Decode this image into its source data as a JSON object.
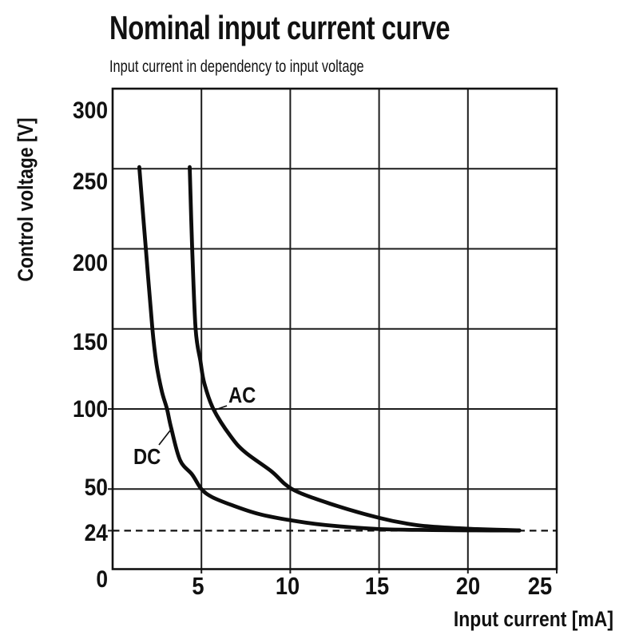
{
  "page": {
    "background": "#ffffff",
    "text_color": "#111111"
  },
  "chart_data": {
    "type": "line",
    "title": "Nominal input current curve",
    "subtitle": "Input current in dependency to input voltage",
    "xlabel": "Input current [mA]",
    "ylabel": "Control voltage [V]",
    "xlim": [
      0,
      25
    ],
    "ylim": [
      0,
      300
    ],
    "x_ticks": [
      5,
      10,
      15,
      20,
      25
    ],
    "y_ticks": [
      300,
      250,
      200,
      150,
      100,
      50,
      24,
      0
    ],
    "reference_line": {
      "y": 24,
      "style": "dashed"
    },
    "grid": true,
    "legend_position": "inline-annotations",
    "colors": {
      "curve": "#0d0d0d",
      "grid": "#1c1c1c",
      "frame": "#111111"
    },
    "series": [
      {
        "name": "DC",
        "points": [
          [
            1.5,
            251
          ],
          [
            1.87,
            200
          ],
          [
            2.24,
            150
          ],
          [
            2.47,
            128
          ],
          [
            2.77,
            111
          ],
          [
            3.06,
            100
          ],
          [
            3.3,
            88
          ],
          [
            3.8,
            68
          ],
          [
            4.48,
            59
          ],
          [
            5.0,
            50
          ],
          [
            5.6,
            45
          ],
          [
            6.7,
            40
          ],
          [
            8.2,
            34.5
          ],
          [
            10,
            30.5
          ],
          [
            12,
            27.5
          ],
          [
            15,
            25
          ],
          [
            18,
            24.4
          ],
          [
            20.5,
            24.2
          ],
          [
            22.9,
            24.1
          ]
        ]
      },
      {
        "name": "AC",
        "points": [
          [
            4.34,
            251
          ],
          [
            4.48,
            200
          ],
          [
            4.67,
            150
          ],
          [
            4.94,
            130
          ],
          [
            5.16,
            116
          ],
          [
            5.67,
            100
          ],
          [
            6.64,
            83
          ],
          [
            7.46,
            73
          ],
          [
            8.95,
            61
          ],
          [
            10.1,
            50
          ],
          [
            12.2,
            41
          ],
          [
            15,
            32
          ],
          [
            17.1,
            27.5
          ],
          [
            19,
            25.8
          ],
          [
            20.5,
            25
          ],
          [
            22.9,
            24.2
          ]
        ]
      }
    ]
  }
}
